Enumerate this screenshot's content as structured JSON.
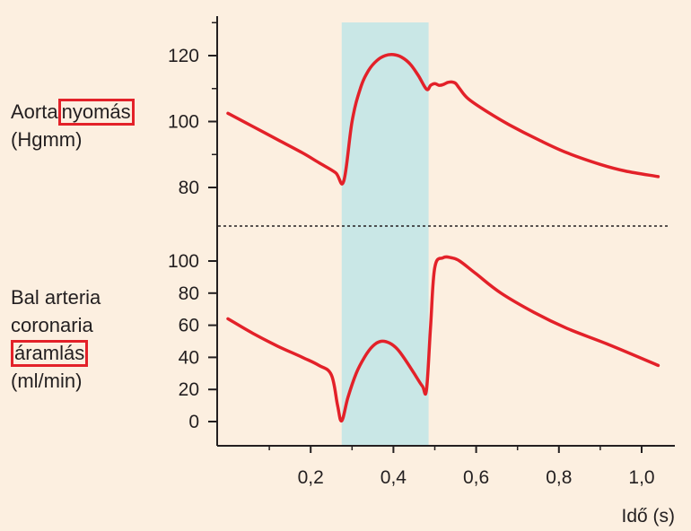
{
  "colors": {
    "background": "#fcefe0",
    "curve": "#e32129",
    "highlight_box": "#e32129",
    "shaded_region": "#c9e7e6",
    "axis": "#231f20"
  },
  "panels": {
    "top": {
      "label_prefix": "Aorta",
      "label_boxed": "nyomás",
      "label_line2": "(Hgmm)"
    },
    "bottom": {
      "label_line1": "Bal arteria",
      "label_line2": "coronaria",
      "label_boxed": "áramlás",
      "label_line4": "(ml/min)"
    }
  },
  "chart_data": {
    "type": "line",
    "xlabel": "Idő (s)",
    "x_ticks": [
      "0,2",
      "0,4",
      "0,6",
      "0,8",
      "1,0"
    ],
    "x_tick_values": [
      0.2,
      0.4,
      0.6,
      0.8,
      1.0
    ],
    "shaded_x_range": [
      0.275,
      0.485
    ],
    "divider": "dashed",
    "panels": [
      {
        "name": "Aortanyomás (Hgmm)",
        "y_ticks": [
          "80",
          "100",
          "120"
        ],
        "y_tick_values": [
          80,
          100,
          120
        ],
        "ylim": [
          80,
          120
        ],
        "x": [
          0.0,
          0.06,
          0.12,
          0.18,
          0.22,
          0.26,
          0.28,
          0.3,
          0.32,
          0.34,
          0.36,
          0.38,
          0.4,
          0.42,
          0.44,
          0.46,
          0.48,
          0.49,
          0.5,
          0.51,
          0.52,
          0.53,
          0.54,
          0.55,
          0.56,
          0.58,
          0.62,
          0.68,
          0.75,
          0.82,
          0.9,
          0.96,
          1.04
        ],
        "values": [
          102.5,
          98.5,
          94.5,
          90.5,
          87.5,
          84.5,
          82.0,
          100.0,
          110.0,
          115.5,
          118.5,
          120.0,
          120.3,
          119.5,
          117.5,
          114.0,
          109.8,
          111.0,
          111.5,
          111.0,
          111.2,
          111.8,
          112.0,
          111.6,
          110.0,
          107.0,
          103.5,
          99.0,
          94.5,
          90.5,
          87.0,
          85.0,
          83.3
        ]
      },
      {
        "name": "Bal arteria coronaria áramlás (ml/min)",
        "y_ticks": [
          "0",
          "20",
          "40",
          "60",
          "80",
          "100"
        ],
        "y_tick_values": [
          0,
          20,
          40,
          60,
          80,
          100
        ],
        "ylim": [
          0,
          100
        ],
        "x": [
          0.0,
          0.06,
          0.12,
          0.18,
          0.22,
          0.25,
          0.265,
          0.275,
          0.29,
          0.31,
          0.33,
          0.35,
          0.37,
          0.39,
          0.41,
          0.43,
          0.45,
          0.47,
          0.48,
          0.49,
          0.5,
          0.52,
          0.54,
          0.56,
          0.6,
          0.66,
          0.74,
          0.82,
          0.92,
          1.04
        ],
        "values": [
          64.0,
          55.0,
          47.0,
          40.0,
          35.0,
          29.0,
          10.0,
          0.5,
          15.0,
          30.0,
          40.0,
          47.0,
          50.0,
          49.0,
          45.0,
          38.0,
          30.0,
          22.0,
          20.0,
          60.0,
          96.0,
          102.0,
          102.0,
          100.0,
          92.0,
          80.0,
          68.0,
          58.0,
          48.0,
          35.0
        ]
      }
    ]
  }
}
